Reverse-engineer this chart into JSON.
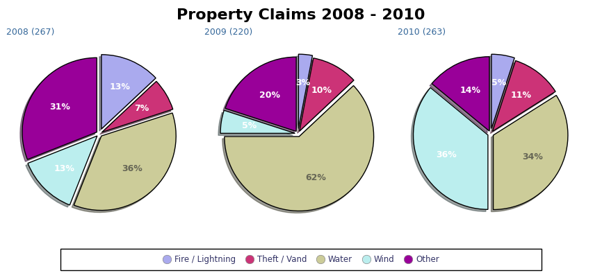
{
  "title": "Property Claims 2008 - 2010",
  "title_fontsize": 16,
  "title_fontweight": "bold",
  "pies": [
    {
      "label": "2008 (267)",
      "categories": [
        "Fire / Lightning",
        "Theft / Vand",
        "Water",
        "Wind",
        "Other"
      ],
      "values": [
        13,
        7,
        36,
        13,
        31
      ],
      "colors": [
        "#aaaaee",
        "#cc3377",
        "#cccc99",
        "#bbeeee",
        "#990099"
      ],
      "startangle": 90,
      "pct_colors": [
        "white",
        "white",
        "#666655",
        "white",
        "white"
      ],
      "pctlabels": [
        "13%",
        "7%",
        "36%",
        "13%",
        "31%"
      ],
      "pct_radii": [
        0.62,
        0.62,
        0.6,
        0.62,
        0.6
      ]
    },
    {
      "label": "2009 (220)",
      "categories": [
        "Fire / Lightning",
        "Theft / Vand",
        "Water",
        "Wind",
        "Other"
      ],
      "values": [
        3,
        10,
        62,
        5,
        20
      ],
      "colors": [
        "#aaaaee",
        "#cc3377",
        "#cccc99",
        "#bbeeee",
        "#990099"
      ],
      "startangle": 90,
      "pct_colors": [
        "white",
        "white",
        "#666655",
        "white",
        "white"
      ],
      "pctlabels": [
        "3%",
        "10%",
        "62%",
        "5%",
        "20%"
      ],
      "pct_radii": [
        0.62,
        0.62,
        0.6,
        0.62,
        0.6
      ]
    },
    {
      "label": "2010 (263)",
      "categories": [
        "Fire / Lightning",
        "Theft / Vand",
        "Water",
        "Wind",
        "Other"
      ],
      "values": [
        5,
        11,
        34,
        36,
        14
      ],
      "colors": [
        "#aaaaee",
        "#cc3377",
        "#cccc99",
        "#bbeeee",
        "#990099"
      ],
      "startangle": 90,
      "pct_colors": [
        "white",
        "white",
        "#666655",
        "white",
        "white"
      ],
      "pctlabels": [
        "5%",
        "11%",
        "34%",
        "36%",
        "14%"
      ],
      "pct_radii": [
        0.62,
        0.62,
        0.6,
        0.62,
        0.6
      ]
    }
  ],
  "legend_labels": [
    "Fire / Lightning",
    "Theft / Vand",
    "Water",
    "Wind",
    "Other"
  ],
  "legend_colors": [
    "#aaaaee",
    "#cc3377",
    "#cccc99",
    "#bbeeee",
    "#990099"
  ],
  "pct_fontsize": 9,
  "label_fontsize": 9,
  "background_color": "#ffffff"
}
